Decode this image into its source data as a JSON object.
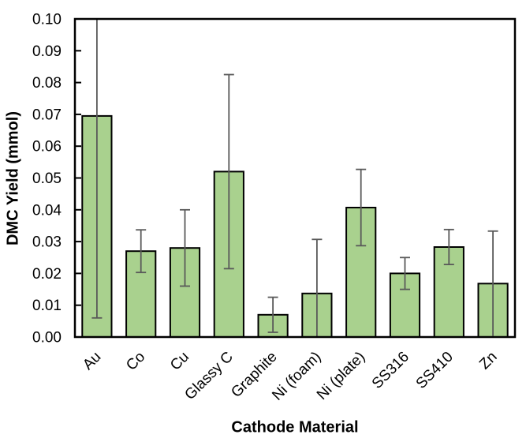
{
  "chart": {
    "ylabel": "DMC Yield (mmol)",
    "xlabel": "Cathode Material"
  },
  "chart_data": {
    "type": "bar",
    "title": "",
    "xlabel": "Cathode Material",
    "ylabel": "DMC Yield (mmol)",
    "categories": [
      "Au",
      "Co",
      "Cu",
      "Glassy C",
      "Graphite",
      "Ni (foam)",
      "Ni (plate)",
      "SS316",
      "SS410",
      "Zn"
    ],
    "values": [
      0.0695,
      0.027,
      0.028,
      0.052,
      0.007,
      0.0137,
      0.0407,
      0.02,
      0.0283,
      0.0168
    ],
    "error_plus_minus": [
      0.0635,
      0.0067,
      0.012,
      0.0305,
      0.0055,
      0.017,
      0.012,
      0.005,
      0.0055,
      0.0165
    ],
    "ylim": [
      0,
      0.1
    ],
    "ytick_step": 0.01,
    "ytick_labels": [
      "0.00",
      "0.01",
      "0.02",
      "0.03",
      "0.04",
      "0.05",
      "0.06",
      "0.07",
      "0.08",
      "0.09",
      "0.10"
    ],
    "grid": false,
    "legend": false,
    "x_label_rotation_deg": -45,
    "colors": {
      "bar_fill": "#a9d18e",
      "bar_stroke": "#000000",
      "error_bar": "#595959",
      "axis": "#000000",
      "text": "#000000",
      "background": "#ffffff"
    }
  }
}
